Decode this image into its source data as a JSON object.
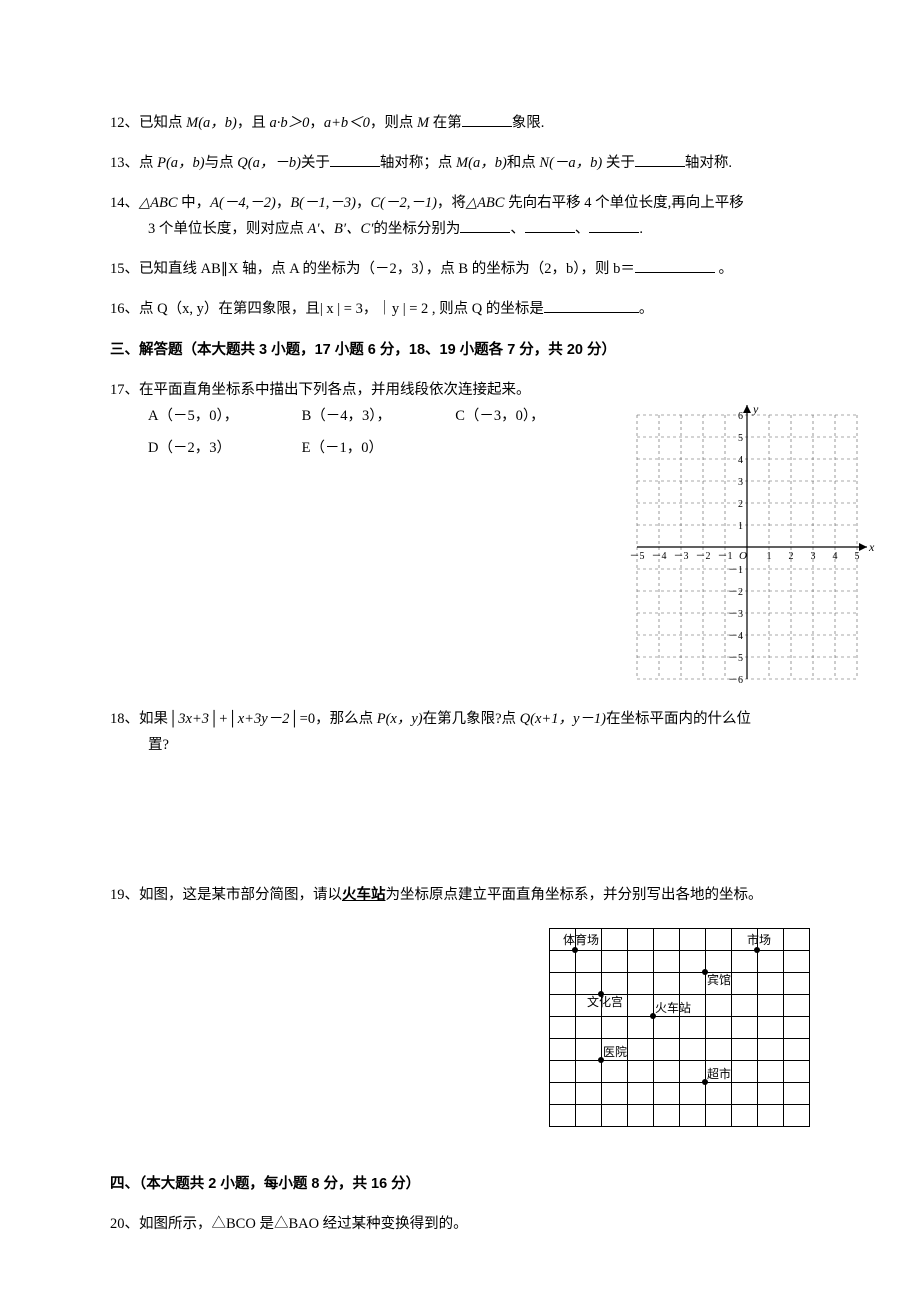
{
  "q12": {
    "num": "12、",
    "pre": "已知点 ",
    "pt": "M(a，b)",
    "mid1": "，且 ",
    "cond1": "a·b＞0",
    "mid2": "，",
    "cond2": "a+b＜0",
    "mid3": "，则点 ",
    "pt2": "M",
    "post": " 在第",
    "tail": "象限."
  },
  "q13": {
    "num": "13、",
    "pre": "点 ",
    "p": "P(a，b)",
    "mid1": "与点 ",
    "q": "Q(a，－b)",
    "mid2": "关于",
    "axis1": "轴对称；点 ",
    "m": "M(a，b)",
    "mid3": "和点 ",
    "n": "N(－a，b)",
    "mid4": " 关于",
    "tail": "轴对称."
  },
  "q14": {
    "num": "14、",
    "tri": "△ABC",
    "mid1": " 中，",
    "a": "A(－4,－2)",
    "c1": "，",
    "b": "B(－1,－3)",
    "c2": "，",
    "c": "C(－2,－1)",
    "mid2": "，将",
    "tri2": "△ABC",
    "desc": " 先向右平移 4 个单位长度,再向上平移",
    "line2a": "3 个单位长度，则对应点 ",
    "pts": "A′、B′、C′",
    "line2b": "的坐标分别为",
    "sep1": "、",
    "sep2": "、",
    "period": "."
  },
  "q15": {
    "num": "15、",
    "text": "已知直线 AB∥X 轴，点 A 的坐标为（－2，3），点 B 的坐标为（2，b），则 b＝",
    "tail": " 。"
  },
  "q16": {
    "num": "16、",
    "text": "点 Q（x, y）在第四象限，且| x | = 3，｜y | = 2 , 则点 Q 的坐标是",
    "tail": "。"
  },
  "section3": "三、解答题（本大题共 3 小题，17 小题 6 分，18、19 小题各 7 分，共 20 分）",
  "q17": {
    "num": "17、",
    "text": "在平面直角坐标系中描出下列各点，并用线段依次连接起来。",
    "pts": {
      "a": "A（－5，0），",
      "b": "B（－4，3），",
      "c": "C（－3，0），",
      "d": "D（－2，3）",
      "e": "E（－1，0）"
    },
    "grid": {
      "xlabel": "x",
      "ylabel": "y",
      "range": [
        -5,
        5
      ],
      "yrange": [
        -6,
        6
      ],
      "cell": 22,
      "dash": "3,3",
      "axis_color": "#000000",
      "grid_color": "#555555"
    }
  },
  "q18": {
    "num": "18、",
    "line1_a": "如果│",
    "expr1": "3x+3",
    "line1_b": "│+│",
    "expr2": "x+3y－2",
    "line1_c": "│=0，那么点 ",
    "p": "P(x，y)",
    "line1_d": "在第几象限?点 ",
    "q": "Q(x+1，y－1)",
    "line1_e": "在坐标平面内的什么位",
    "line2": "置?"
  },
  "q19": {
    "num": "19、",
    "pre": "如图，这是某市部分简图，请以",
    "station": "火车站",
    "post": "为坐标原点建立平面直角坐标系，并分别写出各地的坐标。",
    "labels": {
      "stadium": "体育场",
      "market": "市场",
      "hotel": "宾馆",
      "palace": "文化宫",
      "train": "火车站",
      "hospital": "医院",
      "supermarket": "超市"
    }
  },
  "section4": "四、（本大题共 2 小题，每小题 8 分，共 16 分）",
  "q20": {
    "num": "20、",
    "text": "如图所示，△BCO 是△BAO 经过某种变换得到的。"
  }
}
